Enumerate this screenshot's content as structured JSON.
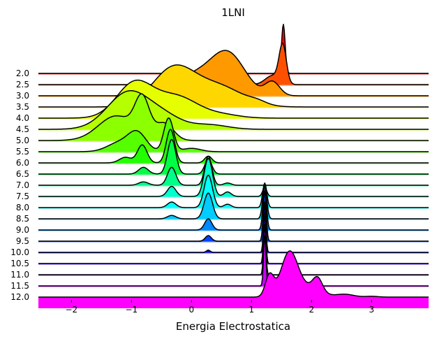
{
  "chart_data": {
    "type": "ridgeline",
    "title": "1LNI",
    "xlabel": "Energia Electrostatica",
    "ylabel": "",
    "xlim": [
      -2.55,
      3.95
    ],
    "x_ticks": [
      "−2",
      "−1",
      "0",
      "1",
      "2",
      "3"
    ],
    "x_tick_values": [
      -2,
      -1,
      0,
      1,
      2,
      3
    ],
    "grid": false,
    "series": [
      {
        "name": "2.0",
        "color": "#ff0000",
        "peaks": [
          {
            "mu": 1.53,
            "sigma": 0.03,
            "amp": 4.4
          }
        ]
      },
      {
        "name": "2.5",
        "color": "#ff5000",
        "peaks": [
          {
            "mu": 1.52,
            "sigma": 0.06,
            "amp": 3.4
          },
          {
            "mu": 1.35,
            "sigma": 0.12,
            "amp": 0.8
          }
        ]
      },
      {
        "name": "3.0",
        "color": "#ff9900",
        "peaks": [
          {
            "mu": 0.62,
            "sigma": 0.28,
            "amp": 3.4
          },
          {
            "mu": 0.05,
            "sigma": 0.38,
            "amp": 1.8
          },
          {
            "mu": 1.35,
            "sigma": 0.12,
            "amp": 1.2
          }
        ]
      },
      {
        "name": "3.5",
        "color": "#ffd700",
        "peaks": [
          {
            "mu": -0.3,
            "sigma": 0.35,
            "amp": 3.4
          },
          {
            "mu": 0.45,
            "sigma": 0.4,
            "amp": 1.8
          },
          {
            "mu": 1.1,
            "sigma": 0.15,
            "amp": 0.25
          }
        ]
      },
      {
        "name": "4.0",
        "color": "#e6ff00",
        "peaks": [
          {
            "mu": -0.95,
            "sigma": 0.3,
            "amp": 3.1
          },
          {
            "mu": -0.25,
            "sigma": 0.35,
            "amp": 1.9
          },
          {
            "mu": 0.5,
            "sigma": 0.3,
            "amp": 0.3
          }
        ]
      },
      {
        "name": "4.5",
        "color": "#b5ff00",
        "peaks": [
          {
            "mu": -1.05,
            "sigma": 0.35,
            "amp": 3.3
          },
          {
            "mu": -0.45,
            "sigma": 0.3,
            "amp": 1.0
          },
          {
            "mu": 0.3,
            "sigma": 0.3,
            "amp": 0.4
          }
        ]
      },
      {
        "name": "5.0",
        "color": "#8cff00",
        "peaks": [
          {
            "mu": -0.82,
            "sigma": 0.12,
            "amp": 3.3
          },
          {
            "mu": -1.25,
            "sigma": 0.3,
            "amp": 2.2
          },
          {
            "mu": -0.45,
            "sigma": 0.15,
            "amp": 1.5
          }
        ]
      },
      {
        "name": "5.5",
        "color": "#55ff00",
        "peaks": [
          {
            "mu": -0.38,
            "sigma": 0.08,
            "amp": 3.0
          },
          {
            "mu": -0.9,
            "sigma": 0.15,
            "amp": 1.6
          },
          {
            "mu": -1.2,
            "sigma": 0.2,
            "amp": 0.8
          },
          {
            "mu": 0.0,
            "sigma": 0.15,
            "amp": 0.3
          }
        ]
      },
      {
        "name": "6.0",
        "color": "#22ff00",
        "peaks": [
          {
            "mu": -0.35,
            "sigma": 0.07,
            "amp": 3.0
          },
          {
            "mu": -0.82,
            "sigma": 0.08,
            "amp": 1.6
          },
          {
            "mu": -1.1,
            "sigma": 0.1,
            "amp": 0.5
          },
          {
            "mu": 0.28,
            "sigma": 0.06,
            "amp": 0.6
          }
        ]
      },
      {
        "name": "6.5",
        "color": "#00ff44",
        "peaks": [
          {
            "mu": -0.33,
            "sigma": 0.07,
            "amp": 3.1
          },
          {
            "mu": 0.28,
            "sigma": 0.06,
            "amp": 1.3
          },
          {
            "mu": -0.8,
            "sigma": 0.08,
            "amp": 0.6
          }
        ]
      },
      {
        "name": "7.0",
        "color": "#00ff88",
        "peaks": [
          {
            "mu": -0.33,
            "sigma": 0.07,
            "amp": 1.6
          },
          {
            "mu": 0.28,
            "sigma": 0.06,
            "amp": 2.6
          },
          {
            "mu": -0.8,
            "sigma": 0.08,
            "amp": 0.3
          },
          {
            "mu": 0.6,
            "sigma": 0.06,
            "amp": 0.2
          }
        ]
      },
      {
        "name": "7.5",
        "color": "#00ffcc",
        "peaks": [
          {
            "mu": 0.28,
            "sigma": 0.07,
            "amp": 3.4
          },
          {
            "mu": -0.33,
            "sigma": 0.07,
            "amp": 0.9
          },
          {
            "mu": 0.6,
            "sigma": 0.06,
            "amp": 0.4
          },
          {
            "mu": 1.22,
            "sigma": 0.035,
            "amp": 0.8
          }
        ]
      },
      {
        "name": "8.0",
        "color": "#00ffff",
        "peaks": [
          {
            "mu": 0.28,
            "sigma": 0.07,
            "amp": 2.9
          },
          {
            "mu": 1.22,
            "sigma": 0.035,
            "amp": 2.2
          },
          {
            "mu": -0.33,
            "sigma": 0.07,
            "amp": 0.5
          },
          {
            "mu": 0.6,
            "sigma": 0.06,
            "amp": 0.3
          }
        ]
      },
      {
        "name": "8.5",
        "color": "#00ccff",
        "peaks": [
          {
            "mu": 0.28,
            "sigma": 0.07,
            "amp": 2.3
          },
          {
            "mu": 1.22,
            "sigma": 0.035,
            "amp": 2.9
          },
          {
            "mu": -0.33,
            "sigma": 0.07,
            "amp": 0.3
          }
        ]
      },
      {
        "name": "9.0",
        "color": "#0088ff",
        "peaks": [
          {
            "mu": 1.22,
            "sigma": 0.03,
            "amp": 4.0
          },
          {
            "mu": 0.28,
            "sigma": 0.06,
            "amp": 1.0
          }
        ]
      },
      {
        "name": "9.5",
        "color": "#0044ff",
        "peaks": [
          {
            "mu": 1.22,
            "sigma": 0.025,
            "amp": 4.5
          },
          {
            "mu": 0.28,
            "sigma": 0.05,
            "amp": 0.5
          }
        ]
      },
      {
        "name": "10.0",
        "color": "#0000ff",
        "peaks": [
          {
            "mu": 1.22,
            "sigma": 0.02,
            "amp": 4.5
          },
          {
            "mu": 0.28,
            "sigma": 0.03,
            "amp": 0.2
          }
        ]
      },
      {
        "name": "10.5",
        "color": "#4400ff",
        "peaks": [
          {
            "mu": 1.22,
            "sigma": 0.02,
            "amp": 4.5
          }
        ]
      },
      {
        "name": "11.0",
        "color": "#8800ff",
        "peaks": [
          {
            "mu": 1.22,
            "sigma": 0.02,
            "amp": 4.5
          }
        ]
      },
      {
        "name": "11.5",
        "color": "#cc00ff",
        "peaks": [
          {
            "mu": 1.22,
            "sigma": 0.02,
            "amp": 4.5
          }
        ]
      },
      {
        "name": "12.0",
        "color": "#ff00ff",
        "peaks": [
          {
            "mu": 1.63,
            "sigma": 0.14,
            "amp": 3.9
          },
          {
            "mu": 1.3,
            "sigma": 0.07,
            "amp": 1.9
          },
          {
            "mu": 2.1,
            "sigma": 0.08,
            "amp": 1.2
          },
          {
            "mu": 1.95,
            "sigma": 0.2,
            "amp": 0.8
          },
          {
            "mu": 2.55,
            "sigma": 0.15,
            "amp": 0.25
          },
          {
            "mu": 3.0,
            "sigma": 0.1,
            "amp": 0.07
          }
        ]
      }
    ]
  }
}
